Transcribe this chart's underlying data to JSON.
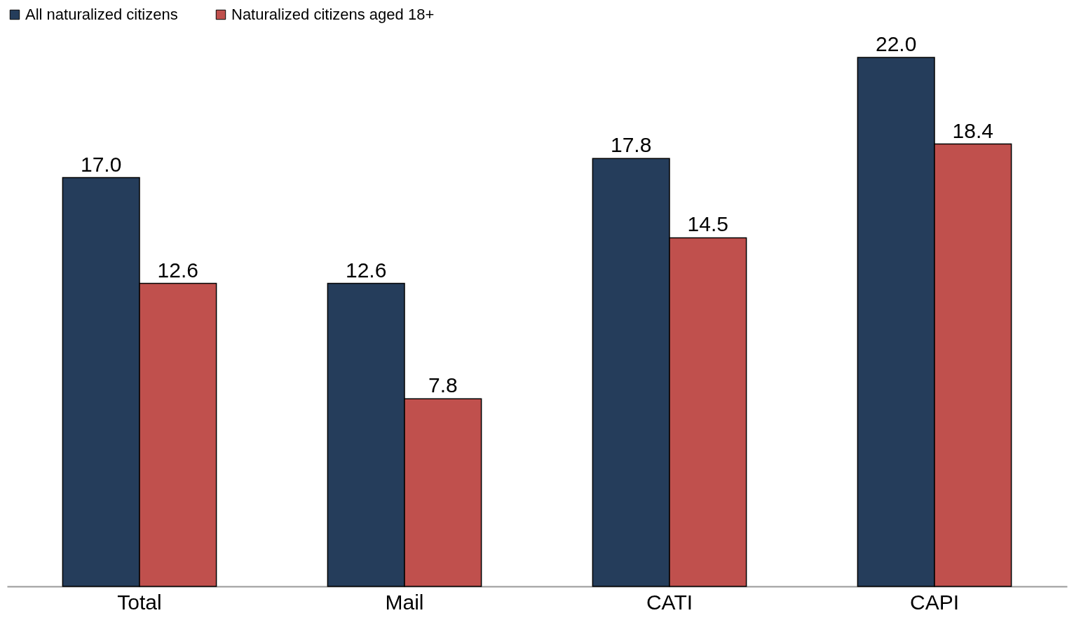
{
  "chart_data": {
    "type": "bar",
    "categories": [
      "Total",
      "Mail",
      "CATI",
      "CAPI"
    ],
    "series": [
      {
        "name": "All naturalized citizens",
        "color": "#253d5b",
        "values": [
          17.0,
          12.6,
          17.8,
          22.0
        ],
        "value_labels": [
          "17.0",
          "12.6",
          "17.8",
          "22.0"
        ]
      },
      {
        "name": "Naturalized citizens aged 18+",
        "color": "#c0504d",
        "values": [
          12.6,
          7.8,
          14.5,
          18.4
        ],
        "value_labels": [
          "12.6",
          "7.8",
          "14.5",
          "18.4"
        ]
      }
    ],
    "legend": "top left",
    "grid": false
  }
}
